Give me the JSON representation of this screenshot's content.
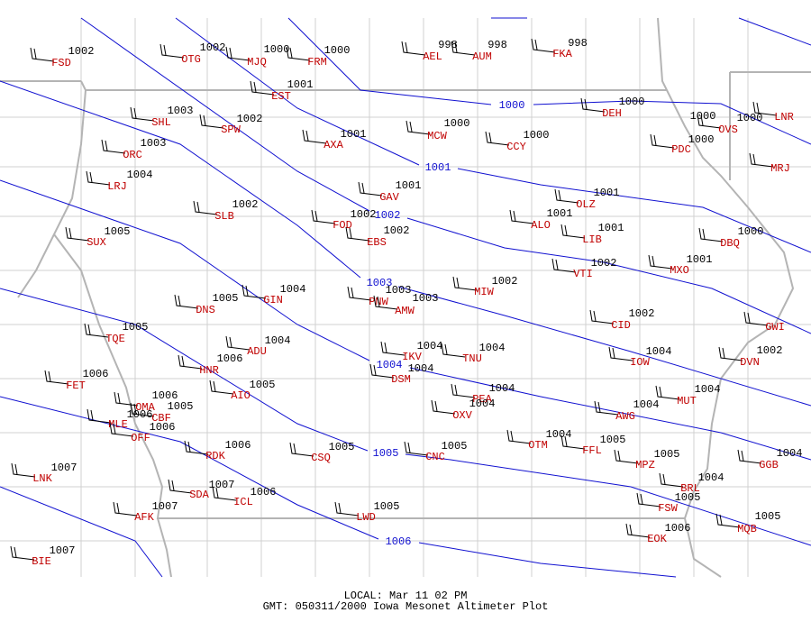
{
  "stations": [
    {
      "id": "FSD",
      "altimeter": 1002
    },
    {
      "id": "OTG",
      "altimeter": 1002
    },
    {
      "id": "MJQ",
      "altimeter": 1000
    },
    {
      "id": "FRM",
      "altimeter": 1000
    },
    {
      "id": "AEL",
      "altimeter": 998
    },
    {
      "id": "AUM",
      "altimeter": 998
    },
    {
      "id": "FKA",
      "altimeter": 998
    },
    {
      "id": "EST",
      "altimeter": 1001
    },
    {
      "id": "SHL",
      "altimeter": 1003
    },
    {
      "id": "SPW",
      "altimeter": 1002
    },
    {
      "id": "AXA",
      "altimeter": 1001
    },
    {
      "id": "MCW",
      "altimeter": 1000
    },
    {
      "id": "CCY",
      "altimeter": 1000
    },
    {
      "id": "DEH",
      "altimeter": 1000
    },
    {
      "id": "PDC",
      "altimeter": 1000
    },
    {
      "id": "OVS",
      "altimeter": 1000
    },
    {
      "id": "LNR",
      "altimeter": 1000
    },
    {
      "id": "MRJ"
    },
    {
      "id": "ORC",
      "altimeter": 1003
    },
    {
      "id": "LRJ",
      "altimeter": 1004
    },
    {
      "id": "GAV",
      "altimeter": 1001
    },
    {
      "id": "OLZ",
      "altimeter": 1001
    },
    {
      "id": "SLB",
      "altimeter": 1002
    },
    {
      "id": "FOD",
      "altimeter": 1002
    },
    {
      "id": "ALO",
      "altimeter": 1001
    },
    {
      "id": "EBS",
      "altimeter": 1002
    },
    {
      "id": "LIB",
      "altimeter": 1001
    },
    {
      "id": "DBQ",
      "altimeter": 1000
    },
    {
      "id": "SUX",
      "altimeter": 1005
    },
    {
      "id": "MXO",
      "altimeter": 1001
    },
    {
      "id": "VTI",
      "altimeter": 1002
    },
    {
      "id": "MIW",
      "altimeter": 1002
    },
    {
      "id": "GIN",
      "altimeter": 1004
    },
    {
      "id": "DNS",
      "altimeter": 1005
    },
    {
      "id": "PNW",
      "altimeter": 1003
    },
    {
      "id": "AMW",
      "altimeter": 1003
    },
    {
      "id": "CID",
      "altimeter": 1002
    },
    {
      "id": "GWI"
    },
    {
      "id": "TQE",
      "altimeter": 1005
    },
    {
      "id": "ADU",
      "altimeter": 1004
    },
    {
      "id": "IKV",
      "altimeter": 1004
    },
    {
      "id": "TNU",
      "altimeter": 1004
    },
    {
      "id": "IOW",
      "altimeter": 1004
    },
    {
      "id": "DVN",
      "altimeter": 1002
    },
    {
      "id": "HNR",
      "altimeter": 1006
    },
    {
      "id": "FET",
      "altimeter": 1006
    },
    {
      "id": "DSM",
      "altimeter": 1004
    },
    {
      "id": "AIO",
      "altimeter": 1005
    },
    {
      "id": "OMA",
      "altimeter": 1006
    },
    {
      "id": "MUT",
      "altimeter": 1004
    },
    {
      "id": "PEA",
      "altimeter": 1004
    },
    {
      "id": "OXV",
      "altimeter": 1004
    },
    {
      "id": "AWG",
      "altimeter": 1004
    },
    {
      "id": "CBF",
      "altimeter": 1005
    },
    {
      "id": "MLE",
      "altimeter": 1006
    },
    {
      "id": "OFF",
      "altimeter": 1006
    },
    {
      "id": "OTM",
      "altimeter": 1004
    },
    {
      "id": "FFL",
      "altimeter": 1005
    },
    {
      "id": "RDK",
      "altimeter": 1006
    },
    {
      "id": "CSQ",
      "altimeter": 1005
    },
    {
      "id": "CNC",
      "altimeter": 1005
    },
    {
      "id": "MPZ",
      "altimeter": 1005
    },
    {
      "id": "GGB",
      "altimeter": 1004
    },
    {
      "id": "LNK",
      "altimeter": 1007
    },
    {
      "id": "SDA",
      "altimeter": 1007
    },
    {
      "id": "ICL",
      "altimeter": 1006
    },
    {
      "id": "BRL",
      "altimeter": 1004
    },
    {
      "id": "FSW",
      "altimeter": 1005
    },
    {
      "id": "AFK",
      "altimeter": 1007
    },
    {
      "id": "LWD",
      "altimeter": 1005
    },
    {
      "id": "MQB",
      "altimeter": 1005
    },
    {
      "id": "EOK",
      "altimeter": 1006
    },
    {
      "id": "BIE",
      "altimeter": 1007
    }
  ],
  "isobar_labels": [
    1000,
    1001,
    1002,
    1003,
    1004,
    1005,
    1006
  ],
  "footer": {
    "local": "LOCAL: Mar 11 02 PM",
    "caption": "GMT: 050311/2000 Iowa Mesonet Altimeter Plot"
  }
}
